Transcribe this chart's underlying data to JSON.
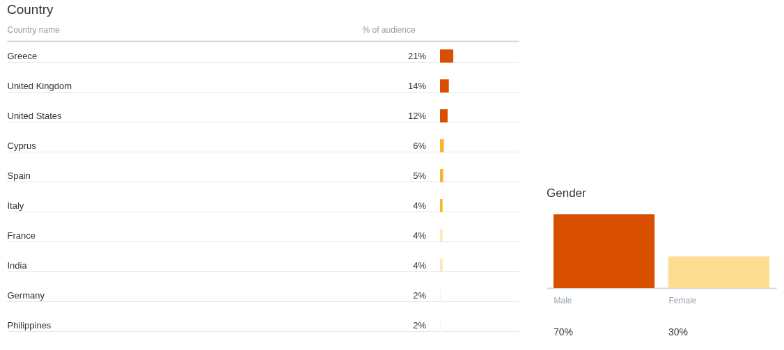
{
  "chart_data": [
    {
      "type": "bar",
      "orientation": "horizontal",
      "title": "Country",
      "ylabel": "Country name",
      "xlabel": "% of audience",
      "categories": [
        "Greece",
        "United Kingdom",
        "United States",
        "Cyprus",
        "Spain",
        "Italy",
        "France",
        "India",
        "Germany",
        "Philippines"
      ],
      "values": [
        21,
        14,
        12,
        6,
        5,
        4,
        4,
        4,
        2,
        2
      ],
      "colors": [
        "#d84f00",
        "#d84f00",
        "#d84f00",
        "#f7b62a",
        "#f7b62a",
        "#f7b62a",
        "#fde6b8",
        "#fde6b8",
        "#f4f7fa",
        "#f4f7fa"
      ],
      "value_labels": [
        "21%",
        "14%",
        "12%",
        "6%",
        "5%",
        "4%",
        "4%",
        "4%",
        "2%",
        "2%"
      ],
      "grid": "y",
      "tick_labels": "y"
    },
    {
      "type": "bar",
      "title": "Gender",
      "categories": [
        "Male",
        "Female"
      ],
      "values": [
        70,
        30
      ],
      "colors": [
        "#d84f00",
        "#fcdc90"
      ],
      "value_labels": [
        "70%",
        "30%"
      ],
      "ylim": [
        0,
        70
      ],
      "tick_labels": "x"
    }
  ]
}
